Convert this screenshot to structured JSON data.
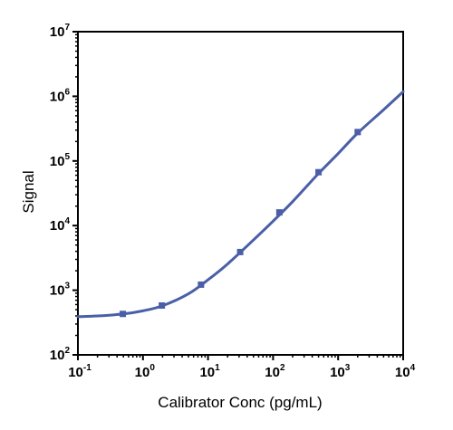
{
  "chart_data": {
    "type": "scatter",
    "xlabel": "Calibrator Conc (pg/mL)",
    "ylabel": "Signal",
    "x_scale": "log",
    "y_scale": "log",
    "xlim": [
      0.1,
      10000
    ],
    "ylim": [
      100,
      10000000
    ],
    "grid": false,
    "legend": "none",
    "x_ticks": [
      0.1,
      1,
      10,
      100,
      1000,
      10000
    ],
    "x_tick_labels": [
      {
        "base": "10",
        "exp": "-1"
      },
      {
        "base": "10",
        "exp": "0"
      },
      {
        "base": "10",
        "exp": "1"
      },
      {
        "base": "10",
        "exp": "2"
      },
      {
        "base": "10",
        "exp": "3"
      },
      {
        "base": "10",
        "exp": "4"
      }
    ],
    "y_ticks": [
      100,
      1000,
      10000,
      100000,
      1000000,
      10000000
    ],
    "y_tick_labels": [
      {
        "base": "10",
        "exp": "2"
      },
      {
        "base": "10",
        "exp": "3"
      },
      {
        "base": "10",
        "exp": "4"
      },
      {
        "base": "10",
        "exp": "5"
      },
      {
        "base": "10",
        "exp": "6"
      },
      {
        "base": "10",
        "exp": "7"
      }
    ],
    "series": [
      {
        "points": {
          "x": [
            0.49,
            1.95,
            7.8,
            31.2,
            125,
            500,
            2000
          ],
          "y": [
            430,
            580,
            1220,
            3900,
            16000,
            67000,
            280000
          ]
        },
        "fit_curve": {
          "x": [
            0.1,
            0.2,
            0.5,
            1,
            2,
            5,
            10,
            20,
            50,
            100,
            200,
            500,
            1000,
            2000,
            5000,
            10000
          ],
          "y": [
            390,
            400,
            430,
            480,
            575,
            880,
            1450,
            2550,
            6000,
            11700,
            23500,
            64000,
            130000,
            270000,
            620000,
            1180000
          ]
        },
        "color": "#4a5fa8"
      }
    ]
  }
}
